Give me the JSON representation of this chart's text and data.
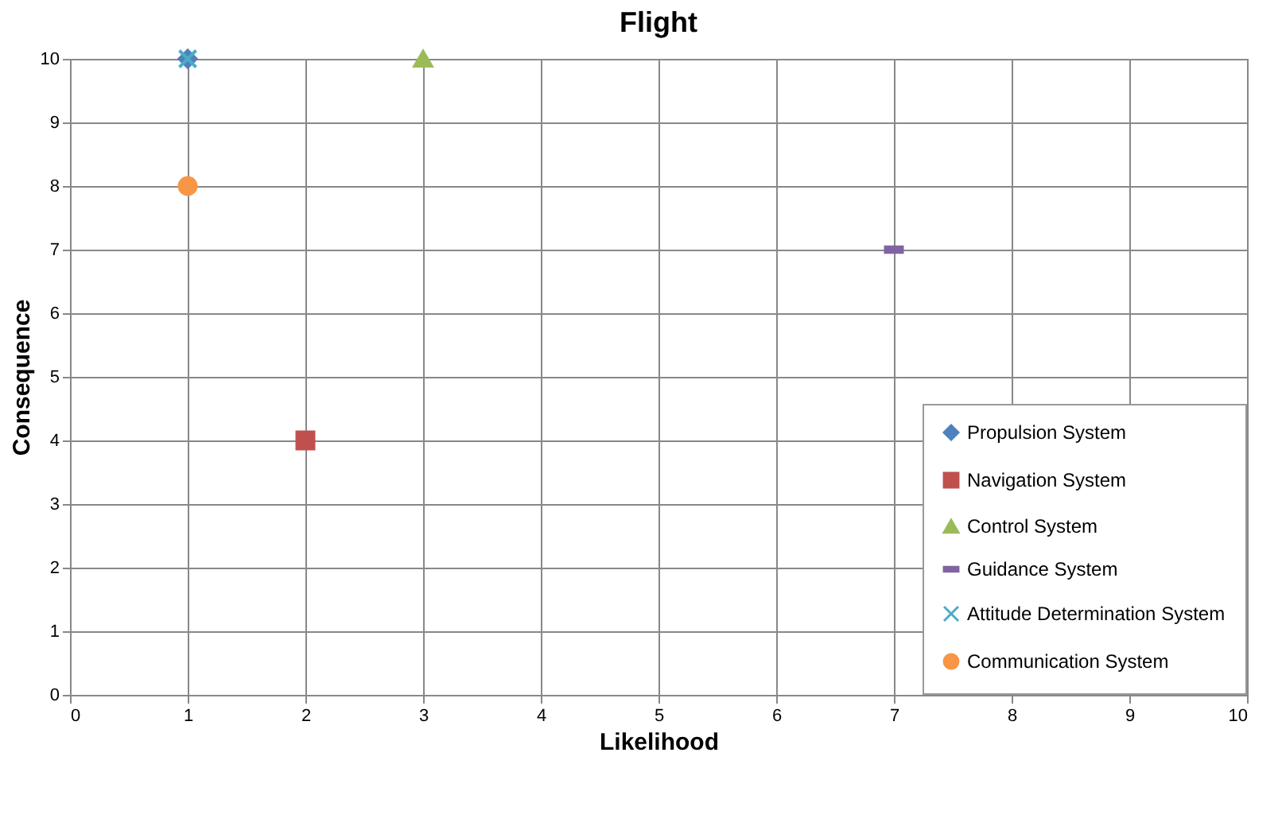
{
  "chart_data": {
    "type": "scatter",
    "title": "Flight",
    "xlabel": "Likelihood",
    "ylabel": "Consequence",
    "xlim": [
      0,
      10
    ],
    "ylim": [
      0,
      10
    ],
    "xticks": [
      0,
      1,
      2,
      3,
      4,
      5,
      6,
      7,
      8,
      9,
      10
    ],
    "yticks": [
      0,
      1,
      2,
      3,
      4,
      5,
      6,
      7,
      8,
      9,
      10
    ],
    "grid": true,
    "legend": "bottom right",
    "series": [
      {
        "name": "Propulsion System",
        "color": "#4f81bd",
        "marker": "diamond",
        "x": [
          1
        ],
        "values": [
          10
        ]
      },
      {
        "name": "Navigation System",
        "color": "#c0504d",
        "marker": "square",
        "x": [
          2
        ],
        "values": [
          4
        ]
      },
      {
        "name": "Control System",
        "color": "#9bbb59",
        "marker": "triangle",
        "x": [
          3
        ],
        "values": [
          10
        ]
      },
      {
        "name": "Guidance System",
        "color": "#8064a2",
        "x": [
          7
        ],
        "values": [
          7
        ]
      },
      {
        "name": "Attitude Determination System",
        "color": "#4bacc6",
        "marker": "cross",
        "x": [
          1
        ],
        "values": [
          10
        ]
      },
      {
        "name": "Communication System",
        "color": "#f79646",
        "marker": "circle",
        "x": [
          1
        ],
        "values": [
          8
        ]
      }
    ]
  }
}
